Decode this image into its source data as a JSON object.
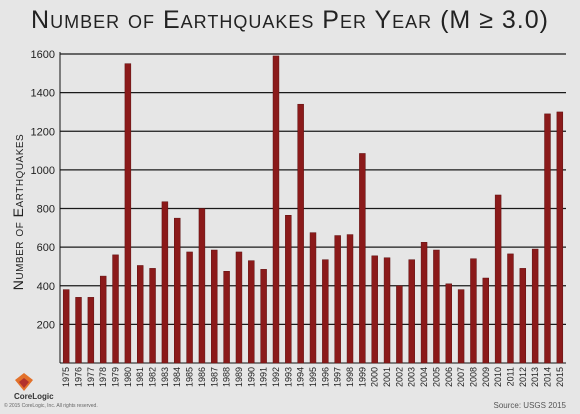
{
  "title": "Number of Earthquakes Per Year (M ≥ 3.0)",
  "brand": {
    "logo_text": "CoreLogic",
    "copyright": "© 2015 CoreLogic, Inc. All rights reserved.",
    "source": "Source: USGS 2015"
  },
  "colors": {
    "bar": "#8b1a1a",
    "bar_highlight": "#a83232",
    "grid": "#1a1a1a",
    "background": "#e6e6e6",
    "logo_orange": "#e2712b",
    "logo_red": "#b3322c"
  },
  "chart_data": {
    "type": "bar",
    "title": "Number of Earthquakes Per Year (M ≥ 3.0)",
    "xlabel": "",
    "ylabel": "Number of Earthquakes",
    "ylim": [
      0,
      1600
    ],
    "yticks": [
      200,
      400,
      600,
      800,
      1000,
      1200,
      1400,
      1600
    ],
    "grid": true,
    "categories": [
      "1975",
      "1976",
      "1977",
      "1978",
      "1979",
      "1980",
      "1981",
      "1982",
      "1983",
      "1984",
      "1985",
      "1986",
      "1987",
      "1988",
      "1989",
      "1990",
      "1991",
      "1992",
      "1993",
      "1994",
      "1995",
      "1996",
      "1997",
      "1998",
      "1999",
      "2000",
      "2001",
      "2002",
      "2003",
      "2004",
      "2005",
      "2006",
      "2007",
      "2008",
      "2009",
      "2010",
      "2011",
      "2012",
      "2013",
      "2014",
      "2015"
    ],
    "values": [
      380,
      340,
      340,
      450,
      560,
      1550,
      505,
      490,
      835,
      750,
      575,
      800,
      585,
      475,
      575,
      530,
      485,
      1590,
      765,
      1340,
      675,
      535,
      660,
      665,
      1085,
      555,
      545,
      400,
      535,
      625,
      585,
      410,
      380,
      540,
      440,
      870,
      565,
      490,
      590,
      1290,
      1300
    ]
  }
}
